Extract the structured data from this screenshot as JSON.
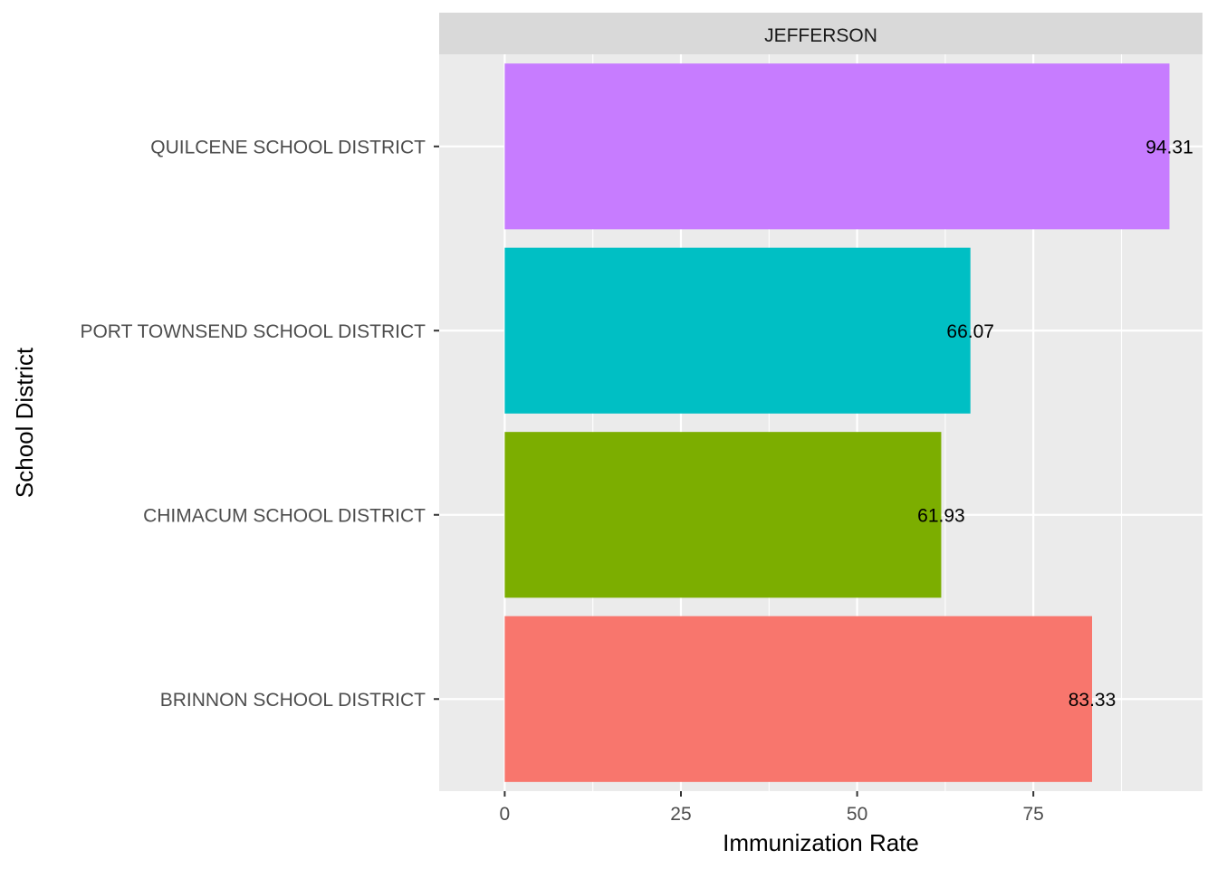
{
  "chart_data": {
    "type": "bar",
    "orientation": "horizontal",
    "facet": "JEFFERSON",
    "xlabel": "Immunization Rate",
    "ylabel": "School District",
    "xlim": [
      -9.3,
      99.0
    ],
    "xticks": [
      0,
      25,
      50,
      75
    ],
    "grid": true,
    "legend": "none",
    "categories": [
      "BRINNON SCHOOL DISTRICT",
      "CHIMACUM SCHOOL DISTRICT",
      "PORT TOWNSEND SCHOOL DISTRICT",
      "QUILCENE SCHOOL DISTRICT"
    ],
    "values": [
      83.33,
      61.93,
      66.07,
      94.31
    ],
    "labels": [
      "83.33",
      "61.93",
      "66.07",
      "94.31"
    ],
    "colors": [
      "#F8766D",
      "#7CAE00",
      "#00BFC4",
      "#C77CFF"
    ]
  }
}
